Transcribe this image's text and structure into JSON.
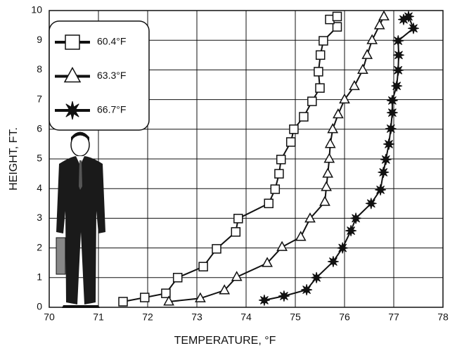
{
  "chart_data": {
    "type": "line",
    "xlabel": "TEMPERATURE, °F",
    "ylabel": "HEIGHT, FT.",
    "xlim": [
      70,
      78
    ],
    "xticks": [
      70,
      71,
      72,
      73,
      74,
      75,
      76,
      77,
      78
    ],
    "ylim": [
      0,
      10
    ],
    "yticks": [
      0,
      1,
      2,
      3,
      4,
      5,
      6,
      7,
      8,
      9,
      10
    ],
    "grid": true,
    "legend": "upper left",
    "series": [
      {
        "name": "60.4°F",
        "color": "#111111",
        "marker": "square",
        "x": [
          71.5,
          71.94,
          72.37,
          72.61,
          73.13,
          73.4,
          73.79,
          73.84,
          74.46,
          74.59,
          74.67,
          74.71,
          74.91,
          74.97,
          75.17,
          75.34,
          75.5,
          75.47,
          75.51,
          75.57,
          75.85,
          75.7,
          75.85
        ],
        "values": [
          0.19,
          0.33,
          0.47,
          1.0,
          1.37,
          1.97,
          2.54,
          2.99,
          3.5,
          3.98,
          4.5,
          4.98,
          5.57,
          6.0,
          6.42,
          6.94,
          7.39,
          7.94,
          8.5,
          8.98,
          9.45,
          9.7,
          9.8
        ]
      },
      {
        "name": "63.3°F",
        "color": "#111111",
        "marker": "triangle",
        "x": [
          72.43,
          73.07,
          73.56,
          73.81,
          74.43,
          74.73,
          75.11,
          75.3,
          75.6,
          75.63,
          75.66,
          75.69,
          75.71,
          75.76,
          75.87,
          76.0,
          76.2,
          76.37,
          76.46,
          76.56,
          76.71,
          76.8
        ],
        "values": [
          0.19,
          0.3,
          0.57,
          1.02,
          1.49,
          2.03,
          2.37,
          2.99,
          3.55,
          4.05,
          4.5,
          5.0,
          5.5,
          6.0,
          6.5,
          7.0,
          7.45,
          8.0,
          8.5,
          9.0,
          9.5,
          9.8
        ]
      },
      {
        "name": "66.7°F",
        "color": "#111111",
        "marker": "star",
        "x": [
          74.37,
          74.77,
          75.23,
          75.43,
          75.77,
          75.96,
          76.13,
          76.23,
          76.54,
          76.73,
          76.79,
          76.84,
          76.9,
          76.94,
          76.97,
          76.97,
          77.06,
          77.09,
          77.1,
          77.09,
          77.4,
          77.3,
          77.2
        ],
        "values": [
          0.24,
          0.38,
          0.59,
          1.0,
          1.54,
          2.0,
          2.58,
          3.0,
          3.5,
          3.96,
          4.55,
          4.98,
          5.5,
          6.02,
          6.56,
          6.97,
          7.46,
          7.99,
          8.5,
          8.98,
          9.4,
          9.8,
          9.7
        ]
      }
    ]
  }
}
